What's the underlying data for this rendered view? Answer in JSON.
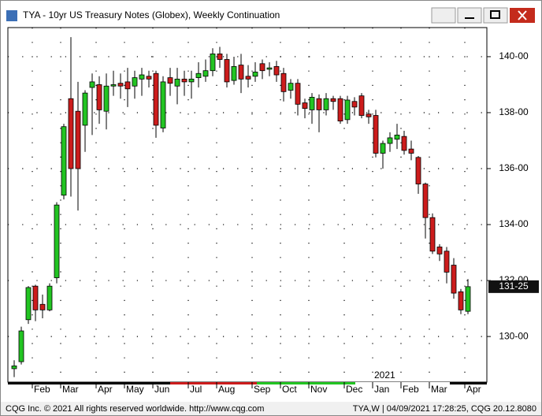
{
  "window_title": "TYA - 10yr US Treasury Notes (Globex), Weekly Continuation",
  "status_left": "CQG Inc. © 2021 All rights reserved worldwide.  http://www.cqg.com",
  "status_right": "TYA,W | 04/09/2021 17:28:25, CQG 20.12.8080",
  "chart_data": {
    "type": "candlestick",
    "categories": [
      null,
      null,
      null,
      "Feb",
      null,
      null,
      null,
      "Mar",
      null,
      null,
      null,
      null,
      "Apr",
      null,
      null,
      null,
      "May",
      null,
      null,
      null,
      "Jun",
      null,
      null,
      null,
      null,
      "Jul",
      null,
      null,
      null,
      "Aug",
      null,
      null,
      null,
      null,
      "Sep",
      null,
      null,
      null,
      "Oct",
      null,
      null,
      null,
      "Nov",
      null,
      null,
      null,
      null,
      "Dec",
      null,
      null,
      null,
      "Jan",
      null,
      null,
      null,
      "Feb",
      null,
      null,
      null,
      "Mar",
      null,
      null,
      null,
      null,
      "Apr"
    ],
    "year_label": "2021",
    "open": [
      128.85,
      129.1,
      130.6,
      131.8,
      131.15,
      130.95,
      132.1,
      135.05,
      138.5,
      138.05,
      137.55,
      138.9,
      139.0,
      138.05,
      138.95,
      139.05,
      139.1,
      138.95,
      139.2,
      139.3,
      139.4,
      137.45,
      139.25,
      138.95,
      139.2,
      139.1,
      139.25,
      139.3,
      139.5,
      140.1,
      139.9,
      139.15,
      139.7,
      139.3,
      139.3,
      139.75,
      139.55,
      139.65,
      139.4,
      138.8,
      139.05,
      138.35,
      138.1,
      138.5,
      138.1,
      138.5,
      138.5,
      137.75,
      138.4,
      138.6,
      137.95,
      137.9,
      136.55,
      136.9,
      137.05,
      137.15,
      136.7,
      136.4,
      135.45,
      134.25,
      133.2,
      133.05,
      132.55,
      131.6,
      130.9
    ],
    "high": [
      129.15,
      130.35,
      131.8,
      131.85,
      131.5,
      131.9,
      134.8,
      137.6,
      140.7,
      139.1,
      138.8,
      139.4,
      139.3,
      139.4,
      139.5,
      139.4,
      139.6,
      139.5,
      139.6,
      139.5,
      139.5,
      139.3,
      139.6,
      139.6,
      139.5,
      139.5,
      139.8,
      139.9,
      140.3,
      140.35,
      140.1,
      140.0,
      140.1,
      139.7,
      139.8,
      139.9,
      139.8,
      139.85,
      139.6,
      139.2,
      139.2,
      138.5,
      138.7,
      138.65,
      138.7,
      138.6,
      138.6,
      138.6,
      138.55,
      138.7,
      138.1,
      138.1,
      137.0,
      137.3,
      137.6,
      137.35,
      137.0,
      136.45,
      135.5,
      134.4,
      133.3,
      133.2,
      132.8,
      131.7,
      132.05
    ],
    "low": [
      128.55,
      129.0,
      130.45,
      130.55,
      130.65,
      130.9,
      131.9,
      134.9,
      135.0,
      134.5,
      136.6,
      137.2,
      137.6,
      137.4,
      138.6,
      138.5,
      138.2,
      138.5,
      138.6,
      138.9,
      137.1,
      137.3,
      138.6,
      138.3,
      138.6,
      138.5,
      138.9,
      139.1,
      139.3,
      139.6,
      138.9,
      139.0,
      138.7,
      138.9,
      139.1,
      139.2,
      139.3,
      139.1,
      138.4,
      138.5,
      137.9,
      137.8,
      137.6,
      137.3,
      137.9,
      138.1,
      137.6,
      137.6,
      137.9,
      137.8,
      137.6,
      136.4,
      136.0,
      136.6,
      136.7,
      136.5,
      136.3,
      135.1,
      133.5,
      132.95,
      132.7,
      131.9,
      131.35,
      130.8,
      130.8
    ],
    "close": [
      128.95,
      130.2,
      131.75,
      130.95,
      130.95,
      131.8,
      134.7,
      137.5,
      136.0,
      136.0,
      138.7,
      139.1,
      138.1,
      138.95,
      139.0,
      138.95,
      138.85,
      139.25,
      139.35,
      139.2,
      137.55,
      139.1,
      139.05,
      139.2,
      139.1,
      139.2,
      139.4,
      139.5,
      140.1,
      139.9,
      139.1,
      139.65,
      139.2,
      139.2,
      139.45,
      139.5,
      139.6,
      139.35,
      138.75,
      139.05,
      138.3,
      138.15,
      138.55,
      138.1,
      138.5,
      138.4,
      137.7,
      138.45,
      138.2,
      137.9,
      137.85,
      136.55,
      136.9,
      137.1,
      137.2,
      136.65,
      136.55,
      135.45,
      134.25,
      133.05,
      132.95,
      132.3,
      131.55,
      130.95,
      131.78125
    ],
    "up_color": "#22c422",
    "down_color": "#cc1c1c",
    "ylim": [
      128.37,
      141.04
    ],
    "yticks": [
      {
        "value": 130,
        "label": "130-00"
      },
      {
        "value": 132,
        "label": "132-00"
      },
      {
        "value": 134,
        "label": "134-00"
      },
      {
        "value": 136,
        "label": "136-00"
      },
      {
        "value": 138,
        "label": "138-00"
      },
      {
        "value": 140,
        "label": "140-00"
      }
    ],
    "last_price": {
      "value": 131.78125,
      "label": "131-25"
    },
    "grid": true
  }
}
